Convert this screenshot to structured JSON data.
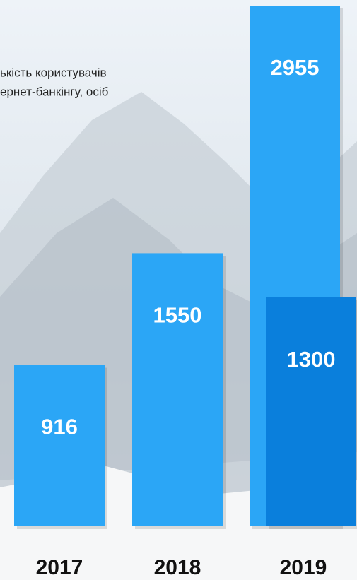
{
  "chart_data": {
    "type": "bar",
    "title": [
      "ькість користувачів",
      "ернет-банкінгу, осіб"
    ],
    "categories": [
      "2017",
      "2018",
      "2019"
    ],
    "series": [
      {
        "color": "#2ba6f6",
        "values": [
          916,
          1550,
          2955
        ]
      },
      {
        "color": "#0a7fdc",
        "values": [
          null,
          null,
          1300
        ]
      }
    ]
  }
}
